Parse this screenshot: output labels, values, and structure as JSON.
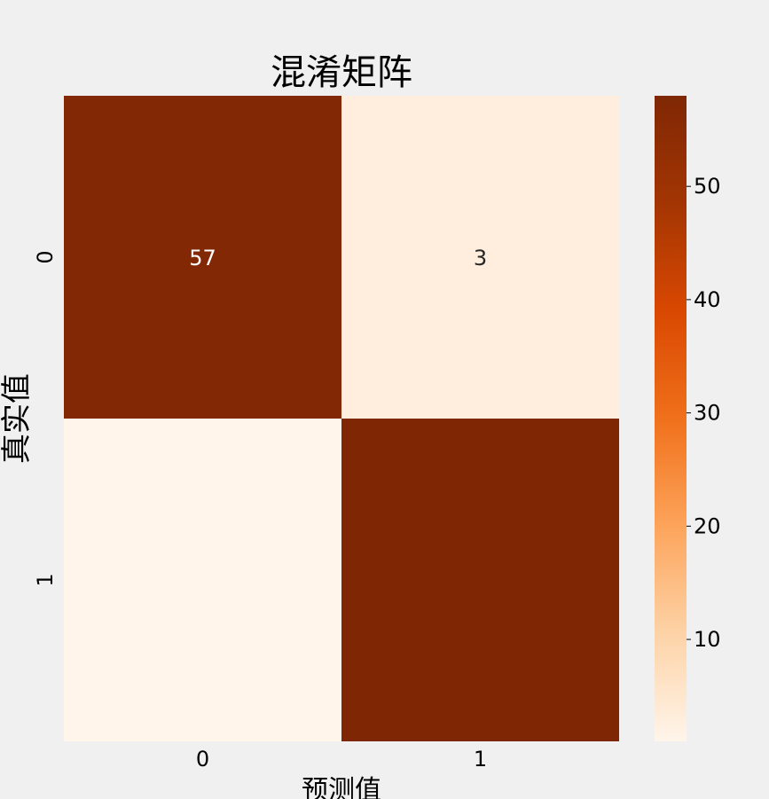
{
  "chart_data": {
    "type": "heatmap",
    "title": "混淆矩阵",
    "xlabel": "预测值",
    "ylabel": "真实值",
    "x_categories": [
      "0",
      "1"
    ],
    "y_categories": [
      "0",
      "1"
    ],
    "values": [
      [
        57,
        3
      ],
      [
        1,
        58
      ]
    ],
    "annotations": [
      [
        "57",
        "3"
      ],
      [
        "",
        ""
      ]
    ],
    "colormap": "Oranges",
    "vmin": 1,
    "vmax": 58,
    "colorbar_ticks": [
      10,
      20,
      30,
      40,
      50
    ],
    "colors": [
      "#fff5eb",
      "#fdd3a7",
      "#fda45b",
      "#f0701b",
      "#d94801",
      "#a33503",
      "#7f2704"
    ]
  }
}
